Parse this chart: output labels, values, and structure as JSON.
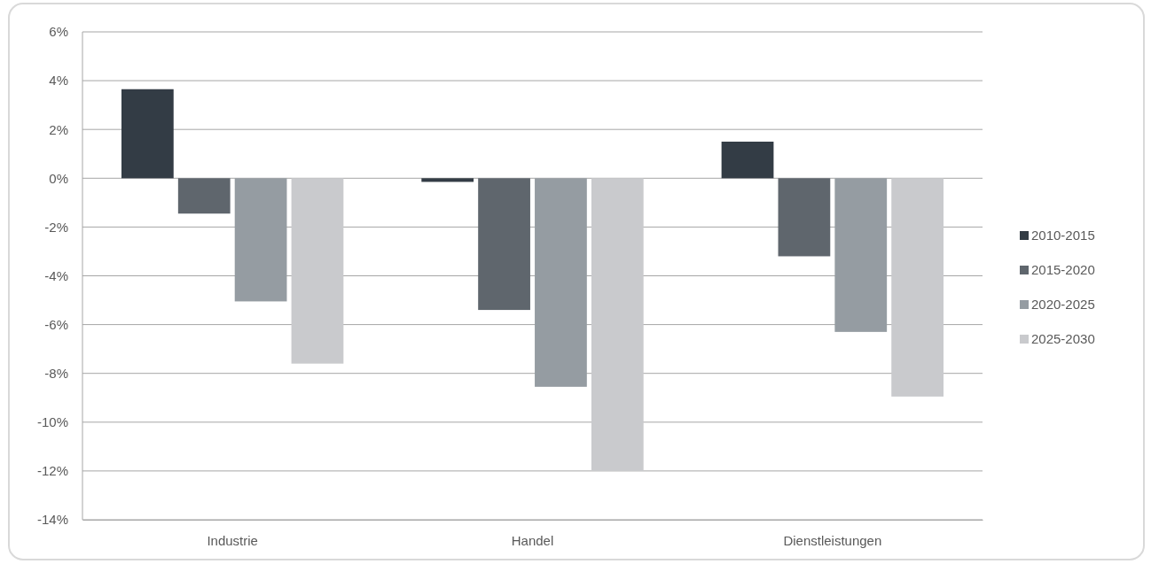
{
  "chart_data": {
    "type": "bar",
    "categories": [
      "Industrie",
      "Handel",
      "Dienstleistungen"
    ],
    "series": [
      {
        "name": "2010-2015",
        "color": "#333c45",
        "values": [
          3.65,
          -0.15,
          1.5
        ]
      },
      {
        "name": "2015-2020",
        "color": "#5f666d",
        "values": [
          -1.45,
          -5.4,
          -3.2
        ]
      },
      {
        "name": "2020-2025",
        "color": "#959ca2",
        "values": [
          -5.05,
          -8.55,
          -6.3
        ]
      },
      {
        "name": "2025-2030",
        "color": "#c9cacd",
        "values": [
          -7.6,
          -12.0,
          -8.95
        ]
      }
    ],
    "ylim": [
      -14,
      6
    ],
    "yticks": [
      {
        "value": -14,
        "label": "-14%"
      },
      {
        "value": -12,
        "label": "-12%"
      },
      {
        "value": -10,
        "label": "-10%"
      },
      {
        "value": -8,
        "label": "-8%"
      },
      {
        "value": -6,
        "label": "-6%"
      },
      {
        "value": -4,
        "label": "-4%"
      },
      {
        "value": -2,
        "label": "-2%"
      },
      {
        "value": 0,
        "label": "0%"
      },
      {
        "value": 2,
        "label": "2%"
      },
      {
        "value": 4,
        "label": "4%"
      },
      {
        "value": 6,
        "label": "6%"
      }
    ],
    "grid": "y",
    "legend": "right"
  }
}
